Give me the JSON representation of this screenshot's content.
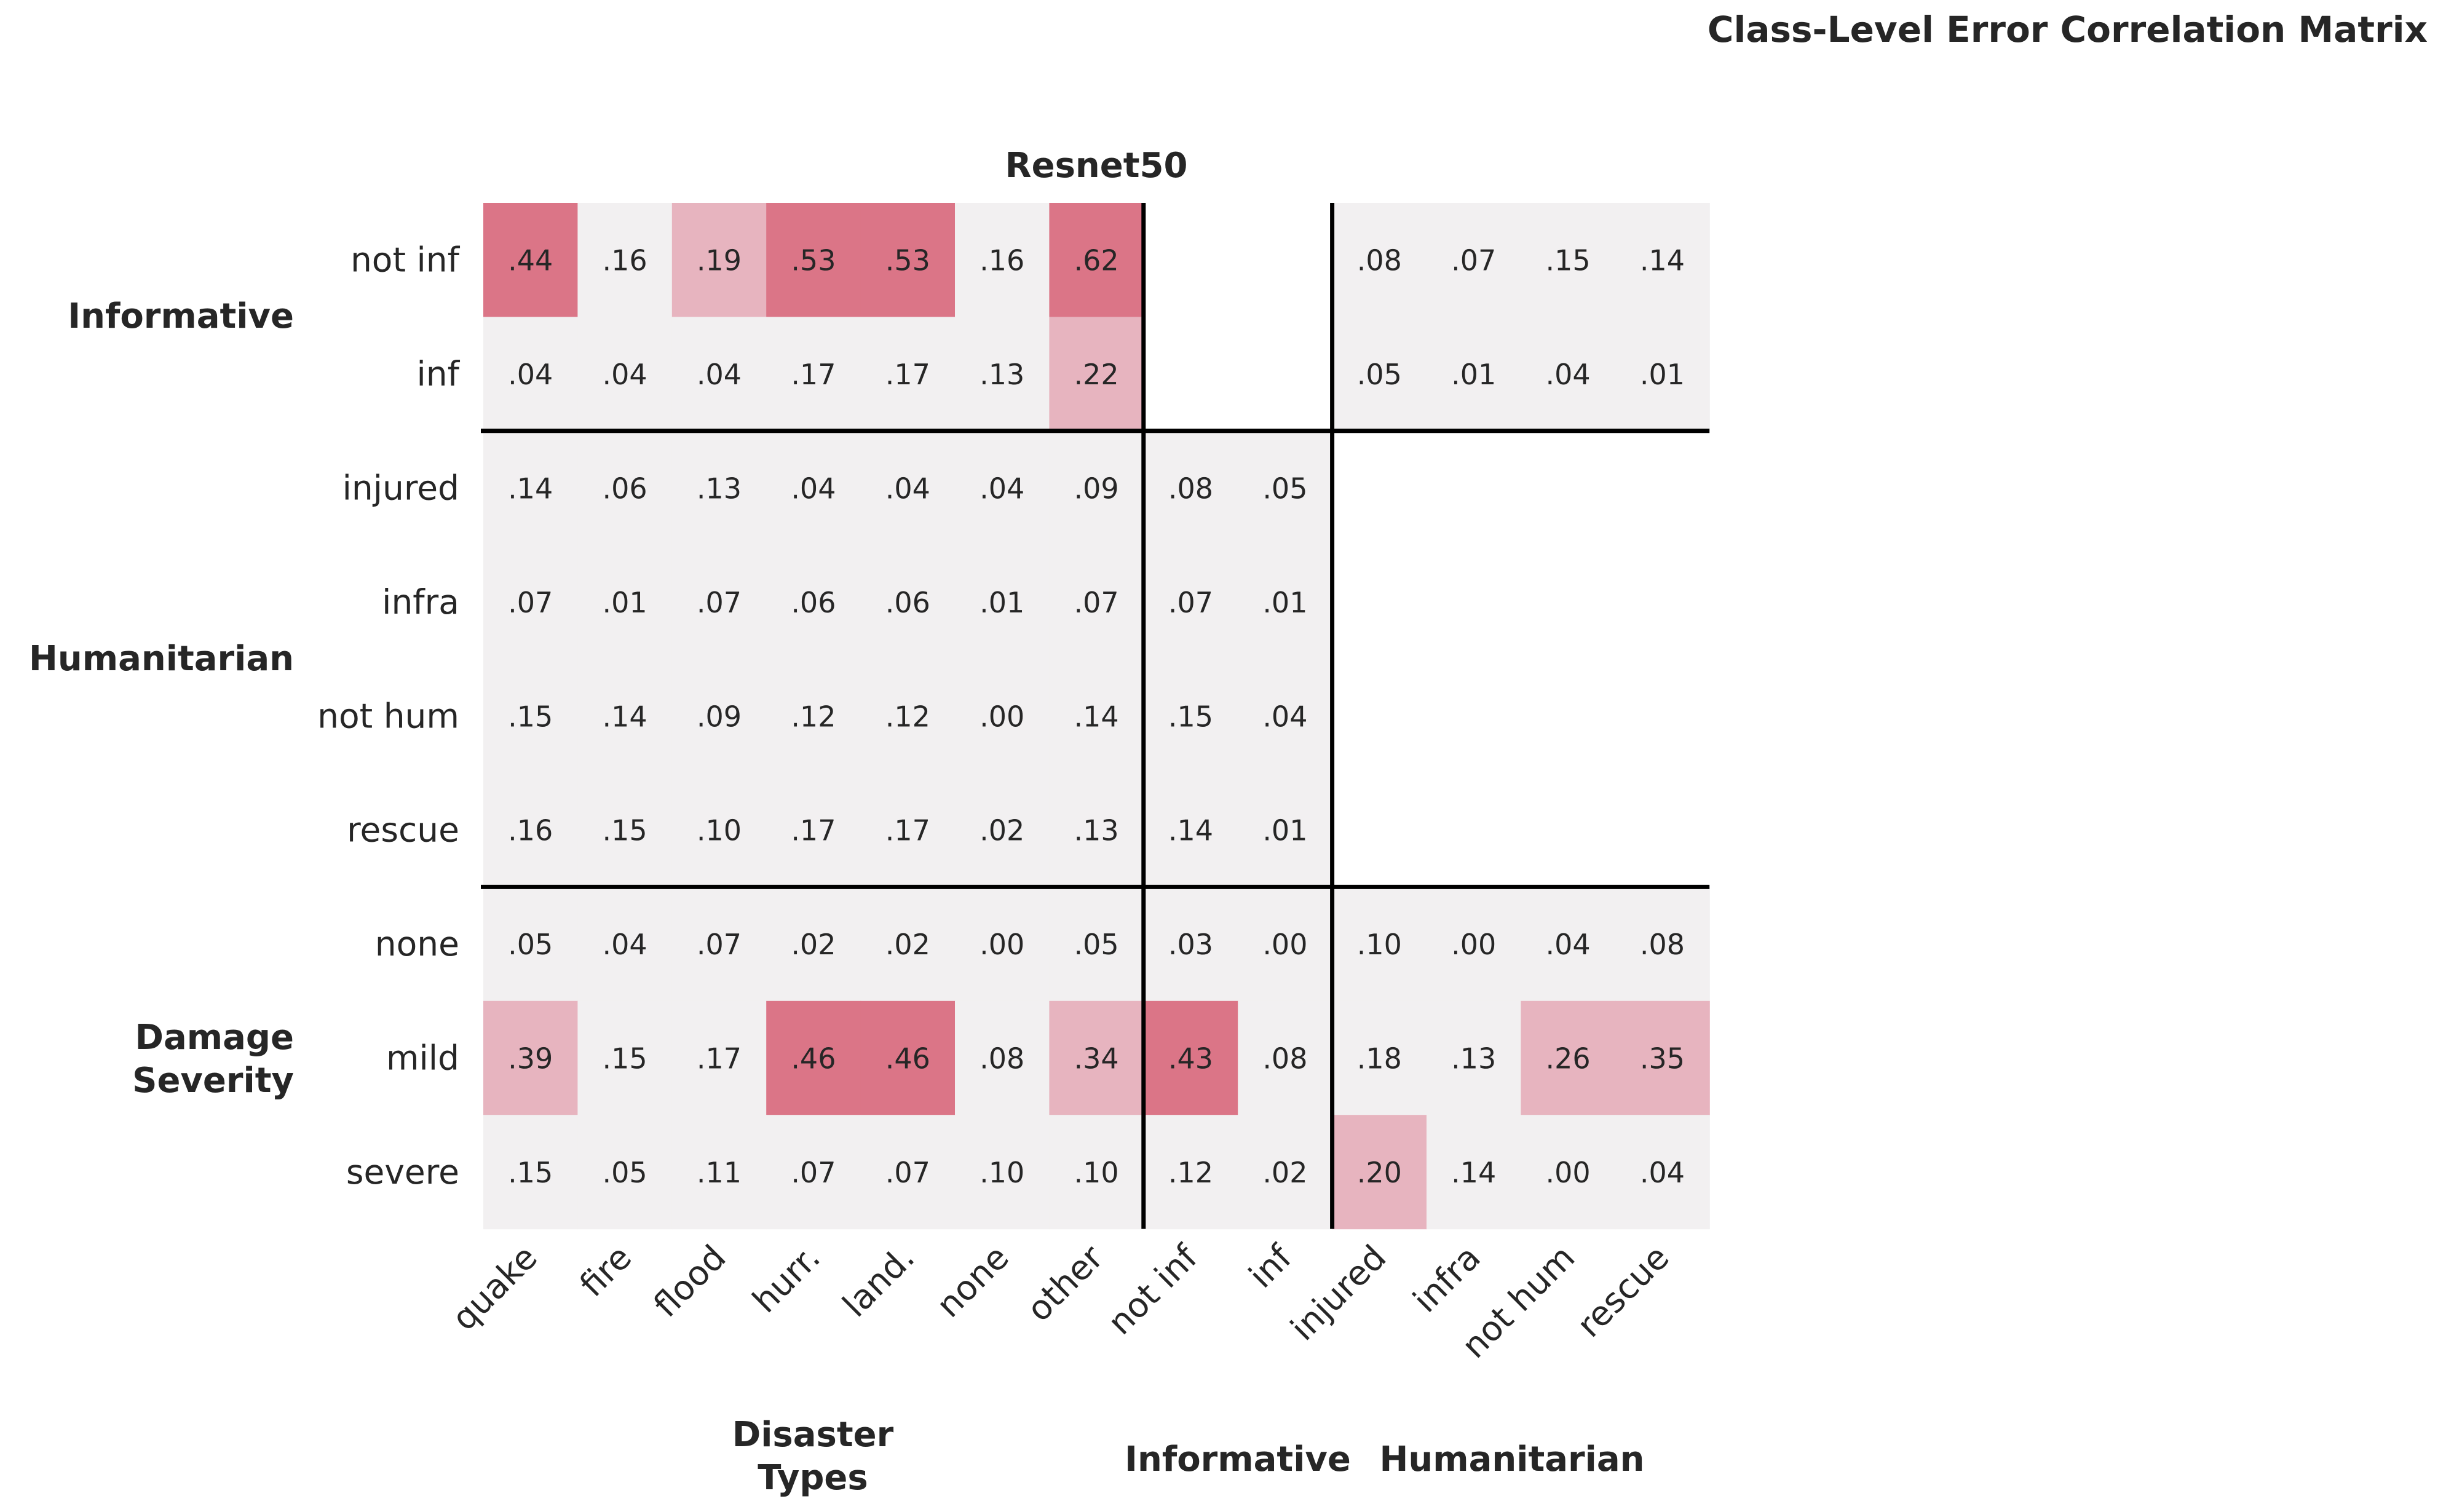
{
  "chart_data": {
    "type": "heatmap",
    "title": "Class-Level Error Correlation Matrix",
    "subtitle": "Resnet50",
    "x_labels": [
      "quake",
      "fire",
      "flood",
      "hurr.",
      "land.",
      "none",
      "other",
      "not inf",
      "inf",
      "injured",
      "infra",
      "not hum",
      "rescue"
    ],
    "y_labels": [
      "not inf",
      "inf",
      "injured",
      "infra",
      "not hum",
      "rescue",
      "none",
      "mild",
      "severe"
    ],
    "x_groups": [
      {
        "label": "Disaster\nTypes",
        "span": [
          0,
          6
        ]
      },
      {
        "label": "Informative",
        "span": [
          7,
          8
        ]
      },
      {
        "label": "Humanitarian",
        "span": [
          9,
          12
        ]
      }
    ],
    "y_groups": [
      {
        "label": "Informative",
        "span": [
          0,
          1
        ]
      },
      {
        "label": "Humanitarian",
        "span": [
          2,
          5
        ]
      },
      {
        "label": "Damage\nSeverity",
        "span": [
          6,
          8
        ]
      }
    ],
    "values": [
      [
        0.44,
        0.16,
        0.19,
        0.53,
        0.53,
        0.16,
        0.62,
        null,
        null,
        0.08,
        0.07,
        0.15,
        0.14
      ],
      [
        0.04,
        0.04,
        0.04,
        0.17,
        0.17,
        0.13,
        0.22,
        null,
        null,
        0.05,
        0.01,
        0.04,
        0.01
      ],
      [
        0.14,
        0.06,
        0.13,
        0.04,
        0.04,
        0.04,
        0.09,
        0.08,
        0.05,
        null,
        null,
        null,
        null
      ],
      [
        0.07,
        0.01,
        0.07,
        0.06,
        0.06,
        0.01,
        0.07,
        0.07,
        0.01,
        null,
        null,
        null,
        null
      ],
      [
        0.15,
        0.14,
        0.09,
        0.12,
        0.12,
        0.0,
        0.14,
        0.15,
        0.04,
        null,
        null,
        null,
        null
      ],
      [
        0.16,
        0.15,
        0.1,
        0.17,
        0.17,
        0.02,
        0.13,
        0.14,
        0.01,
        null,
        null,
        null,
        null
      ],
      [
        0.05,
        0.04,
        0.07,
        0.02,
        0.02,
        0.0,
        0.05,
        0.03,
        0.0,
        0.1,
        0.0,
        0.04,
        0.08
      ],
      [
        0.39,
        0.15,
        0.17,
        0.46,
        0.46,
        0.08,
        0.34,
        0.43,
        0.08,
        0.18,
        0.13,
        0.26,
        0.35
      ],
      [
        0.15,
        0.05,
        0.11,
        0.07,
        0.07,
        0.1,
        0.1,
        0.12,
        0.02,
        0.2,
        0.14,
        0.0,
        0.04
      ]
    ],
    "colors": {
      "low": "#f2f0f1",
      "mid": "#e7b4bf",
      "high": "#db7587",
      "line": "#000000",
      "text_dark": "#262626",
      "text_light": "#ffffff"
    }
  }
}
